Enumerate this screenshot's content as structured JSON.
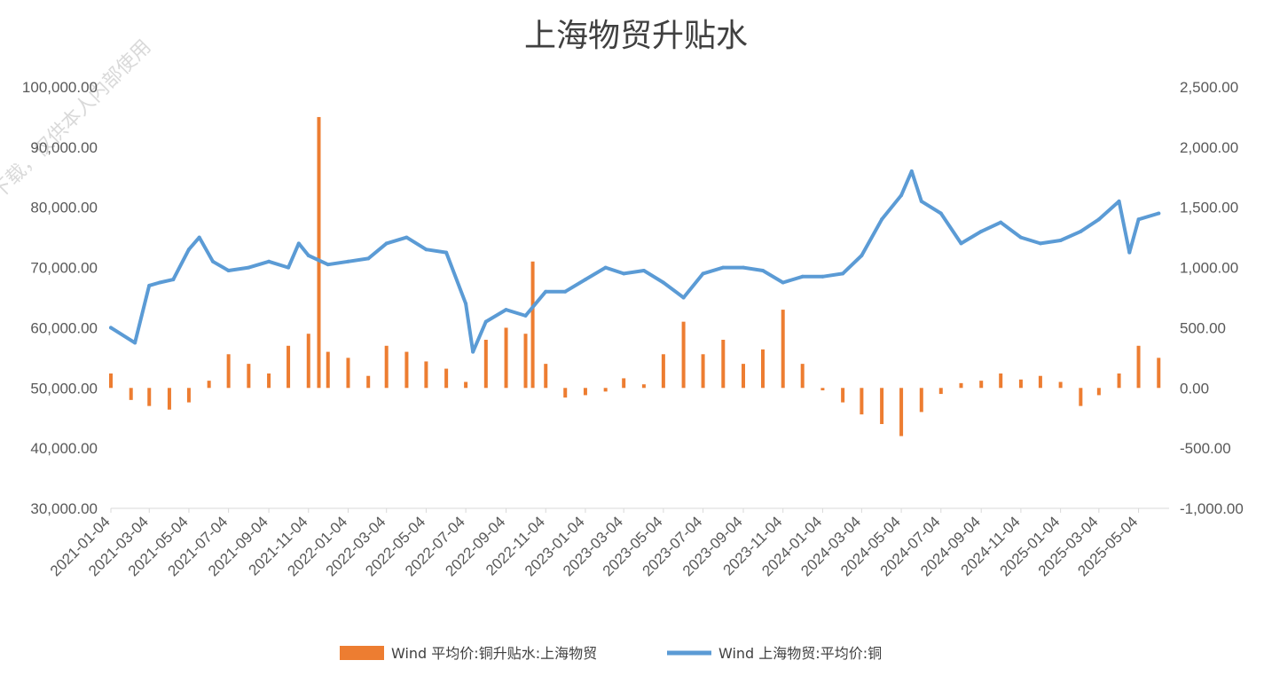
{
  "chart_data": {
    "type": "bar+line",
    "title": "上海物贸升贴水",
    "watermark": "下载，仅供本人内部使用",
    "left_axis": {
      "ticks": [
        "100,000.00",
        "90,000.00",
        "80,000.00",
        "70,000.00",
        "60,000.00",
        "50,000.00",
        "40,000.00",
        "30,000.00"
      ],
      "ylim": [
        30000,
        100000
      ]
    },
    "right_axis": {
      "ticks": [
        "2,500.00",
        "2,000.00",
        "1,500.00",
        "1,000.00",
        "500.00",
        "0.00",
        "-500.00",
        "-1,000.00"
      ],
      "ylim": [
        -1000,
        2500
      ]
    },
    "x_ticks": [
      "2021-01-04",
      "2021-03-04",
      "2021-05-04",
      "2021-07-04",
      "2021-09-04",
      "2021-11-04",
      "2022-01-04",
      "2022-03-04",
      "2022-05-04",
      "2022-07-04",
      "2022-09-04",
      "2022-11-04",
      "2023-01-04",
      "2023-03-04",
      "2023-05-04",
      "2023-07-04",
      "2023-09-04",
      "2023-11-04",
      "2024-01-04",
      "2024-03-04",
      "2024-05-04",
      "2024-07-04",
      "2024-09-04",
      "2024-11-04",
      "2025-01-04",
      "2025-03-04",
      "2025-05-04"
    ],
    "series": [
      {
        "name": "Wind 平均价:铜升贴水:上海物贸",
        "type": "bar",
        "axis": "right",
        "color": "#ED7D31",
        "x": [
          "2021-01-04",
          "2021-02-04",
          "2021-03-04",
          "2021-04-04",
          "2021-05-04",
          "2021-06-04",
          "2021-07-04",
          "2021-08-04",
          "2021-09-04",
          "2021-10-04",
          "2021-11-04",
          "2021-11-20",
          "2021-12-04",
          "2022-01-04",
          "2022-02-04",
          "2022-03-04",
          "2022-04-04",
          "2022-05-04",
          "2022-06-04",
          "2022-07-04",
          "2022-08-04",
          "2022-09-04",
          "2022-10-04",
          "2022-10-15",
          "2022-11-04",
          "2022-12-04",
          "2023-01-04",
          "2023-02-04",
          "2023-03-04",
          "2023-04-04",
          "2023-05-04",
          "2023-06-04",
          "2023-07-04",
          "2023-08-04",
          "2023-09-04",
          "2023-10-04",
          "2023-11-04",
          "2023-12-04",
          "2024-01-04",
          "2024-02-04",
          "2024-03-04",
          "2024-04-04",
          "2024-05-04",
          "2024-06-04",
          "2024-07-04",
          "2024-08-04",
          "2024-09-04",
          "2024-10-04",
          "2024-11-04",
          "2024-12-04",
          "2025-01-04",
          "2025-02-04",
          "2025-03-04",
          "2025-04-04",
          "2025-05-04",
          "2025-06-04"
        ],
        "values": [
          120,
          -100,
          -150,
          -180,
          -120,
          60,
          280,
          200,
          120,
          350,
          450,
          2250,
          300,
          250,
          100,
          350,
          300,
          220,
          160,
          50,
          400,
          500,
          450,
          1050,
          200,
          -80,
          -60,
          -30,
          80,
          30,
          280,
          550,
          280,
          400,
          200,
          320,
          650,
          200,
          -20,
          -120,
          -220,
          -300,
          -400,
          -200,
          -50,
          40,
          60,
          120,
          70,
          100,
          50,
          -150,
          -60,
          120,
          350,
          250
        ]
      },
      {
        "name": "Wind 上海物贸:平均价:铜",
        "type": "line",
        "axis": "left",
        "color": "#5B9BD5",
        "x": [
          "2021-01-04",
          "2021-02-10",
          "2021-03-04",
          "2021-03-20",
          "2021-04-10",
          "2021-05-04",
          "2021-05-20",
          "2021-06-10",
          "2021-07-04",
          "2021-08-04",
          "2021-09-04",
          "2021-10-04",
          "2021-10-20",
          "2021-11-04",
          "2021-12-04",
          "2022-01-04",
          "2022-02-04",
          "2022-03-04",
          "2022-04-04",
          "2022-05-04",
          "2022-06-04",
          "2022-07-04",
          "2022-07-15",
          "2022-08-04",
          "2022-09-04",
          "2022-10-04",
          "2022-11-04",
          "2022-12-04",
          "2023-01-04",
          "2023-02-04",
          "2023-03-04",
          "2023-04-04",
          "2023-05-04",
          "2023-06-04",
          "2023-07-04",
          "2023-08-04",
          "2023-09-04",
          "2023-10-04",
          "2023-11-04",
          "2023-12-04",
          "2024-01-04",
          "2024-02-04",
          "2024-03-04",
          "2024-04-04",
          "2024-05-04",
          "2024-05-20",
          "2024-06-04",
          "2024-07-04",
          "2024-08-04",
          "2024-09-04",
          "2024-10-04",
          "2024-11-04",
          "2024-12-04",
          "2025-01-04",
          "2025-02-04",
          "2025-03-04",
          "2025-04-04",
          "2025-04-20",
          "2025-05-04",
          "2025-06-04"
        ],
        "values": [
          60000,
          57500,
          67000,
          67500,
          68000,
          73000,
          75000,
          71000,
          69500,
          70000,
          71000,
          70000,
          74000,
          72000,
          70500,
          71000,
          71500,
          74000,
          75000,
          73000,
          72500,
          64000,
          56000,
          61000,
          63000,
          62000,
          66000,
          66000,
          68000,
          70000,
          69000,
          69500,
          67500,
          65000,
          69000,
          70000,
          70000,
          69500,
          67500,
          68500,
          68500,
          69000,
          72000,
          78000,
          82000,
          86000,
          81000,
          79000,
          74000,
          76000,
          77500,
          75000,
          74000,
          74500,
          76000,
          78000,
          81000,
          72500,
          78000,
          79000
        ]
      }
    ],
    "legend": {
      "position": "bottom"
    }
  }
}
